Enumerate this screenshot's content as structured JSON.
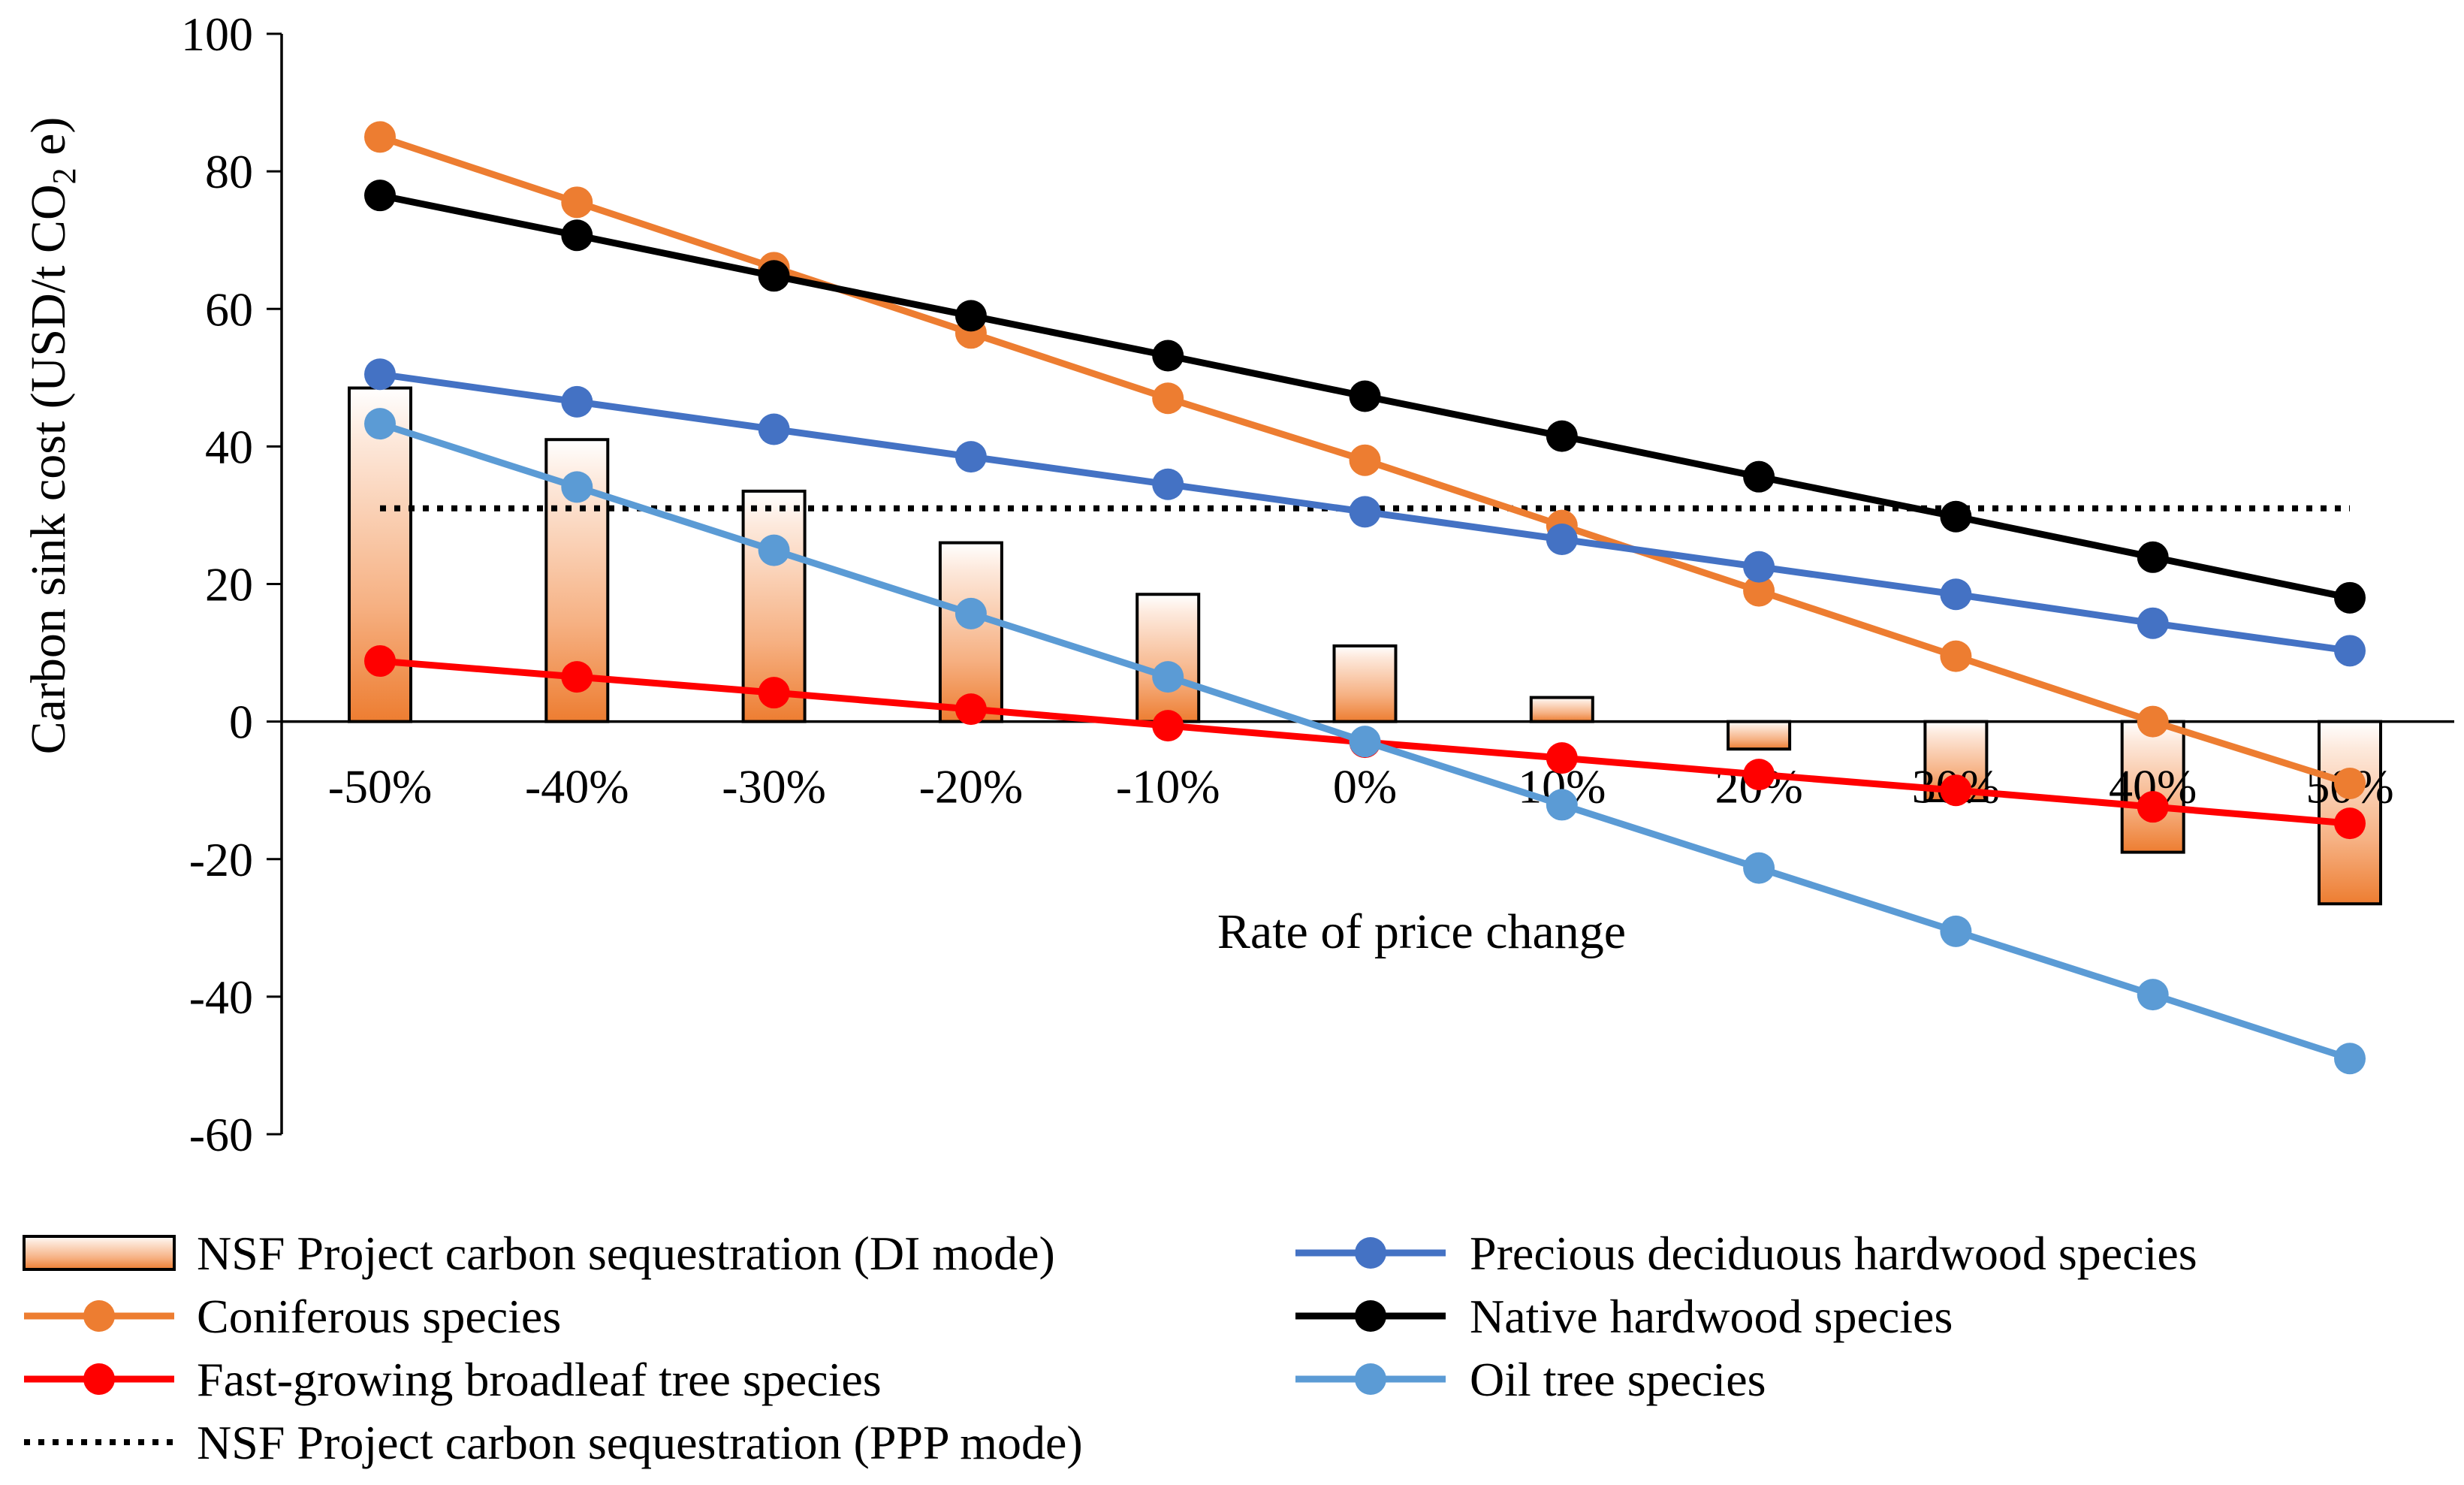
{
  "chart_data": {
    "type": "bar+line",
    "title": "",
    "xlabel": "Rate of price change",
    "ylabel": {
      "main": "Carbon sink cost (USD/t CO",
      "sub": "2",
      "tail": " e)"
    },
    "ylim": [
      -60,
      100
    ],
    "yticks": [
      "100",
      "80",
      "60",
      "40",
      "20",
      "0",
      "-20",
      "-40",
      "-60"
    ],
    "categories": [
      "-50%",
      "-40%",
      "-30%",
      "-20%",
      "-10%",
      "0%",
      "10%",
      "20%",
      "30%",
      "40%",
      "50%"
    ],
    "bars": {
      "name": "NSF Project carbon sequestration (DI mode)",
      "values": [
        48.5,
        41,
        33.5,
        26,
        18.5,
        11,
        3.5,
        -4,
        -11.5,
        -19,
        -26.5
      ]
    },
    "reference_line": {
      "name": "NSF Project carbon sequestration (PPP mode)",
      "value": 31
    },
    "series": [
      {
        "name": "Coniferous species",
        "color": "#ED7D31",
        "values": [
          85,
          75.5,
          66,
          56.5,
          47,
          38,
          28.5,
          19,
          9.5,
          0,
          -9
        ]
      },
      {
        "name": "Fast-growing broadleaf tree species",
        "color": "#FF0000",
        "values": [
          8.8,
          6.5,
          4.2,
          1.8,
          -0.6,
          -3,
          -5.3,
          -7.7,
          -10,
          -12.4,
          -14.8
        ]
      },
      {
        "name": "Precious deciduous hardwood species",
        "color": "#4472C4",
        "values": [
          50.5,
          46.5,
          42.5,
          38.5,
          34.5,
          30.5,
          26.5,
          22.5,
          18.5,
          14.3,
          10.3
        ]
      },
      {
        "name": "Native hardwood species",
        "color": "#000000",
        "values": [
          76.5,
          70.7,
          64.8,
          59,
          53.2,
          47.3,
          41.5,
          35.6,
          29.8,
          23.9,
          18
        ]
      },
      {
        "name": "Oil tree species",
        "color": "#5B9BD5",
        "values": [
          43.3,
          34.1,
          24.9,
          15.7,
          6.5,
          -2.9,
          -12.1,
          -21.3,
          -30.5,
          -39.7,
          -49
        ]
      }
    ],
    "legend": {
      "position": "bottom",
      "left_column": [
        "NSF Project carbon sequestration (DI mode)",
        "Coniferous species",
        "Fast-growing broadleaf tree species",
        "NSF Project carbon sequestration (PPP mode)"
      ],
      "right_column": [
        "Precious deciduous hardwood species",
        "Native hardwood species",
        "Oil tree species"
      ]
    }
  }
}
